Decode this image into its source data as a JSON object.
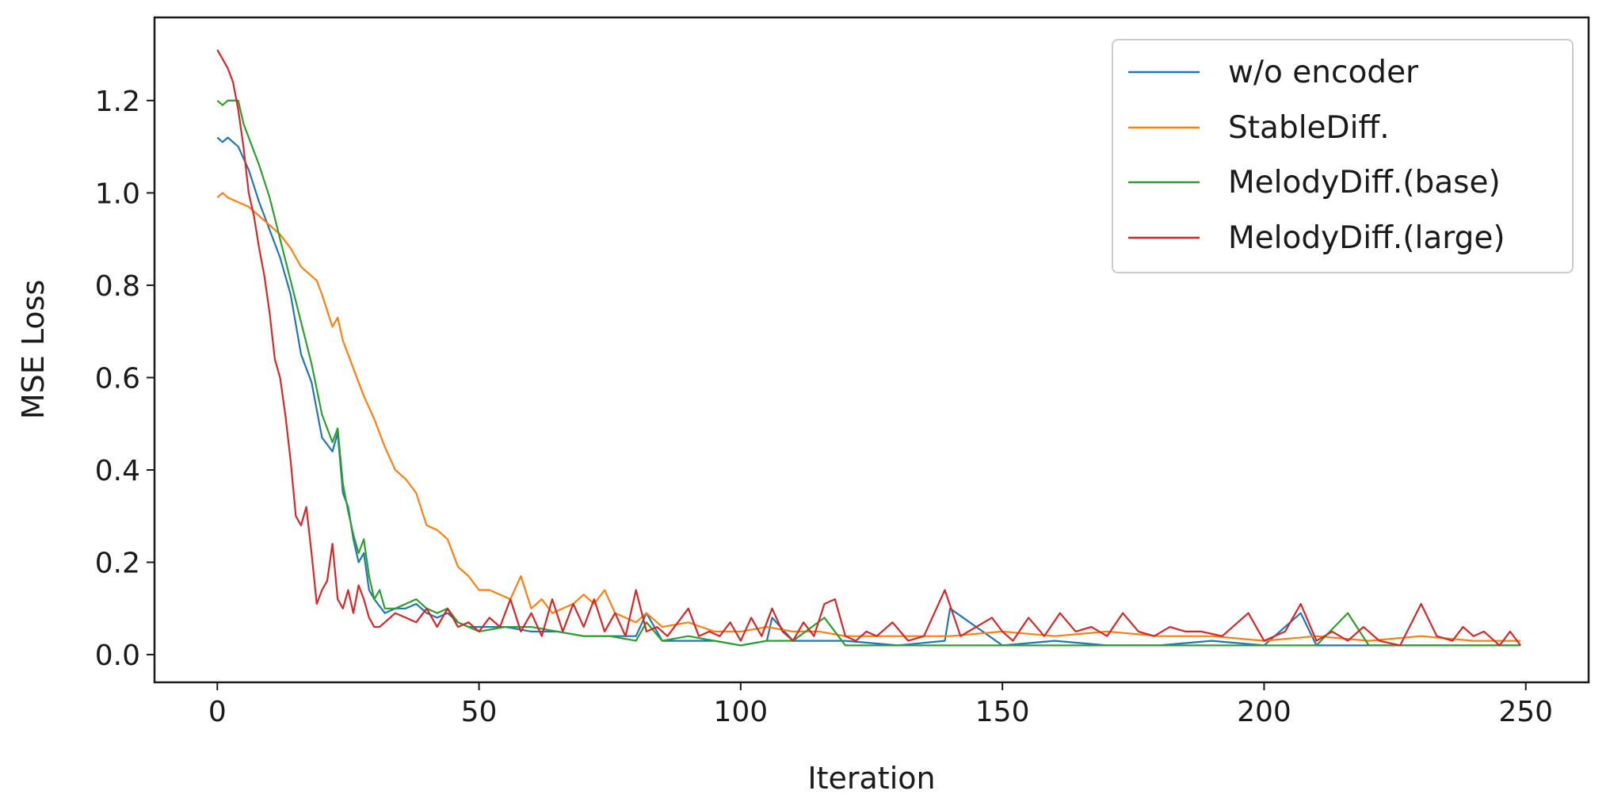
{
  "chart_data": {
    "type": "line",
    "title": "",
    "xlabel": "Iteration",
    "ylabel": "MSE Loss",
    "xlim": [
      -12,
      262
    ],
    "ylim": [
      -0.06,
      1.38
    ],
    "xticks": [
      0,
      50,
      100,
      150,
      200,
      250
    ],
    "yticks": [
      0.0,
      0.2,
      0.4,
      0.6,
      0.8,
      1.0,
      1.2
    ],
    "xtick_labels": [
      "0",
      "50",
      "100",
      "150",
      "200",
      "250"
    ],
    "ytick_labels": [
      "0.0",
      "0.2",
      "0.4",
      "0.6",
      "0.8",
      "1.0",
      "1.2"
    ],
    "grid": false,
    "legend_position": "top-right",
    "series": [
      {
        "name": "w/o encoder",
        "color": "#1f77b4",
        "x": [
          0,
          1,
          2,
          3,
          4,
          6,
          8,
          10,
          12,
          14,
          16,
          18,
          20,
          22,
          23,
          24,
          25,
          26,
          27,
          28,
          29,
          30,
          32,
          34,
          36,
          38,
          40,
          42,
          44,
          46,
          48,
          50,
          55,
          60,
          65,
          70,
          75,
          80,
          82,
          85,
          90,
          95,
          100,
          105,
          106,
          110,
          120,
          130,
          139,
          140,
          150,
          160,
          170,
          180,
          190,
          200,
          207,
          210,
          220,
          230,
          240,
          249
        ],
        "y": [
          1.12,
          1.11,
          1.12,
          1.11,
          1.1,
          1.05,
          0.98,
          0.92,
          0.86,
          0.78,
          0.65,
          0.59,
          0.47,
          0.44,
          0.48,
          0.35,
          0.32,
          0.25,
          0.2,
          0.22,
          0.14,
          0.12,
          0.09,
          0.1,
          0.1,
          0.11,
          0.09,
          0.08,
          0.09,
          0.07,
          0.06,
          0.06,
          0.06,
          0.05,
          0.05,
          0.04,
          0.04,
          0.04,
          0.09,
          0.03,
          0.03,
          0.03,
          0.02,
          0.03,
          0.08,
          0.03,
          0.03,
          0.02,
          0.03,
          0.1,
          0.02,
          0.03,
          0.02,
          0.02,
          0.03,
          0.02,
          0.09,
          0.02,
          0.02,
          0.02,
          0.02,
          0.02
        ]
      },
      {
        "name": "StableDiff.",
        "color": "#ff7f0e",
        "x": [
          0,
          1,
          2,
          4,
          6,
          8,
          10,
          12,
          14,
          16,
          18,
          19,
          20,
          22,
          23,
          24,
          26,
          28,
          30,
          32,
          34,
          36,
          38,
          40,
          42,
          44,
          46,
          48,
          50,
          52,
          54,
          56,
          58,
          60,
          62,
          64,
          66,
          68,
          70,
          72,
          74,
          76,
          78,
          80,
          82,
          85,
          90,
          95,
          100,
          105,
          110,
          115,
          120,
          130,
          140,
          150,
          160,
          170,
          180,
          190,
          200,
          210,
          220,
          230,
          240,
          249
        ],
        "y": [
          0.99,
          1.0,
          0.99,
          0.98,
          0.97,
          0.95,
          0.93,
          0.91,
          0.88,
          0.84,
          0.82,
          0.81,
          0.78,
          0.71,
          0.73,
          0.68,
          0.62,
          0.56,
          0.51,
          0.45,
          0.4,
          0.38,
          0.35,
          0.28,
          0.27,
          0.25,
          0.19,
          0.17,
          0.14,
          0.14,
          0.13,
          0.12,
          0.17,
          0.1,
          0.12,
          0.09,
          0.1,
          0.11,
          0.13,
          0.11,
          0.14,
          0.09,
          0.08,
          0.07,
          0.09,
          0.06,
          0.07,
          0.05,
          0.05,
          0.06,
          0.05,
          0.05,
          0.04,
          0.04,
          0.04,
          0.05,
          0.04,
          0.05,
          0.04,
          0.04,
          0.03,
          0.04,
          0.03,
          0.04,
          0.03,
          0.03
        ]
      },
      {
        "name": "MelodyDiff.(base)",
        "color": "#2ca02c",
        "x": [
          0,
          1,
          2,
          3,
          4,
          5,
          6,
          8,
          10,
          12,
          14,
          16,
          18,
          20,
          22,
          23,
          24,
          25,
          26,
          27,
          28,
          29,
          30,
          31,
          32,
          34,
          36,
          38,
          40,
          42,
          44,
          46,
          48,
          50,
          55,
          60,
          65,
          70,
          75,
          80,
          82,
          85,
          90,
          95,
          100,
          105,
          110,
          116,
          120,
          130,
          140,
          150,
          160,
          170,
          180,
          190,
          200,
          210,
          216,
          220,
          230,
          240,
          249
        ],
        "y": [
          1.2,
          1.19,
          1.2,
          1.2,
          1.2,
          1.15,
          1.12,
          1.06,
          0.99,
          0.9,
          0.81,
          0.72,
          0.63,
          0.52,
          0.46,
          0.49,
          0.37,
          0.31,
          0.26,
          0.22,
          0.25,
          0.17,
          0.12,
          0.14,
          0.1,
          0.1,
          0.11,
          0.12,
          0.1,
          0.09,
          0.1,
          0.07,
          0.06,
          0.05,
          0.06,
          0.06,
          0.05,
          0.04,
          0.04,
          0.03,
          0.07,
          0.03,
          0.04,
          0.03,
          0.02,
          0.03,
          0.03,
          0.08,
          0.02,
          0.02,
          0.02,
          0.02,
          0.02,
          0.02,
          0.02,
          0.02,
          0.02,
          0.02,
          0.09,
          0.02,
          0.02,
          0.02,
          0.02
        ]
      },
      {
        "name": "MelodyDiff.(large)",
        "color": "#d62728",
        "x": [
          0,
          1,
          2,
          3,
          4,
          5,
          6,
          7,
          8,
          9,
          10,
          11,
          12,
          13,
          14,
          15,
          16,
          17,
          18,
          19,
          20,
          21,
          22,
          23,
          24,
          25,
          26,
          27,
          28,
          29,
          30,
          31,
          32,
          33,
          34,
          36,
          38,
          40,
          42,
          44,
          46,
          48,
          50,
          52,
          54,
          56,
          58,
          60,
          62,
          64,
          66,
          68,
          70,
          72,
          74,
          76,
          78,
          80,
          82,
          84,
          86,
          88,
          90,
          92,
          94,
          96,
          98,
          100,
          102,
          104,
          106,
          108,
          110,
          112,
          114,
          116,
          118,
          120,
          122,
          124,
          126,
          129,
          132,
          135,
          139,
          142,
          145,
          148,
          150,
          152,
          155,
          158,
          161,
          164,
          167,
          170,
          173,
          176,
          179,
          182,
          185,
          188,
          192,
          197,
          200,
          204,
          207,
          210,
          213,
          216,
          219,
          222,
          226,
          230,
          233,
          236,
          238,
          240,
          242,
          245,
          247,
          249
        ],
        "y": [
          1.31,
          1.29,
          1.27,
          1.24,
          1.18,
          1.1,
          1.0,
          0.95,
          0.88,
          0.82,
          0.74,
          0.64,
          0.6,
          0.52,
          0.42,
          0.3,
          0.28,
          0.32,
          0.22,
          0.11,
          0.14,
          0.16,
          0.24,
          0.12,
          0.1,
          0.14,
          0.09,
          0.15,
          0.12,
          0.08,
          0.06,
          0.06,
          0.07,
          0.08,
          0.09,
          0.08,
          0.07,
          0.1,
          0.06,
          0.1,
          0.06,
          0.07,
          0.05,
          0.08,
          0.06,
          0.12,
          0.05,
          0.09,
          0.04,
          0.12,
          0.05,
          0.11,
          0.06,
          0.12,
          0.05,
          0.09,
          0.04,
          0.14,
          0.05,
          0.06,
          0.04,
          0.07,
          0.1,
          0.04,
          0.05,
          0.04,
          0.07,
          0.03,
          0.08,
          0.04,
          0.1,
          0.05,
          0.03,
          0.07,
          0.04,
          0.11,
          0.12,
          0.04,
          0.03,
          0.05,
          0.04,
          0.07,
          0.03,
          0.04,
          0.14,
          0.04,
          0.06,
          0.08,
          0.05,
          0.03,
          0.08,
          0.04,
          0.09,
          0.05,
          0.06,
          0.04,
          0.09,
          0.05,
          0.04,
          0.06,
          0.05,
          0.05,
          0.04,
          0.09,
          0.03,
          0.05,
          0.11,
          0.03,
          0.05,
          0.03,
          0.06,
          0.03,
          0.02,
          0.11,
          0.04,
          0.03,
          0.06,
          0.04,
          0.05,
          0.02,
          0.05,
          0.02
        ]
      }
    ]
  }
}
